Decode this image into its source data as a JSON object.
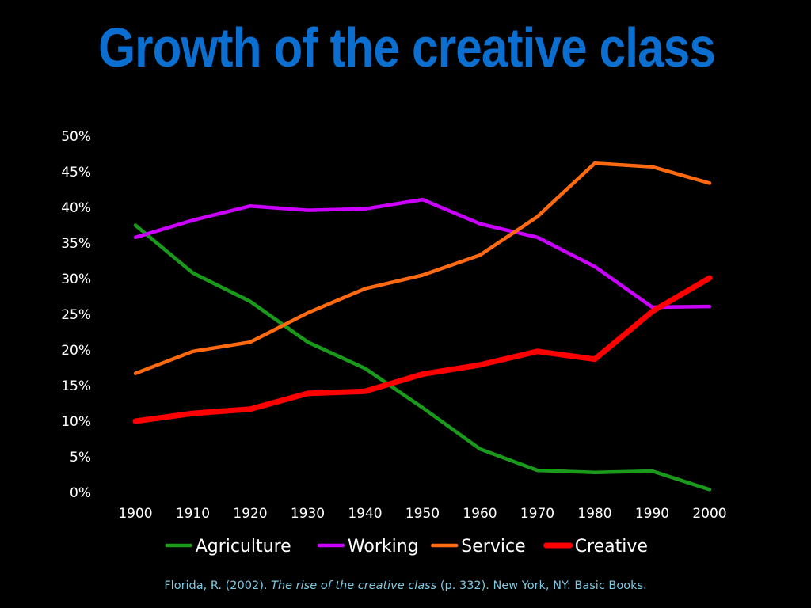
{
  "slide": {
    "title": "Growth of the creative class",
    "title_color": "#0a6fd0",
    "background": "#000000"
  },
  "citation": {
    "author": "Florida, R. (2002). ",
    "work": "The rise of the creative class",
    "rest": " (p. 332). New York, NY: Basic Books.",
    "color": "#7ec8e3"
  },
  "chart_data": {
    "type": "line",
    "x": [
      "1900",
      "1910",
      "1920",
      "1930",
      "1940",
      "1950",
      "1960",
      "1970",
      "1980",
      "1990",
      "2000"
    ],
    "ylim": [
      0,
      50
    ],
    "y_ticks": [
      "0%",
      "5%",
      "10%",
      "15%",
      "20%",
      "25%",
      "30%",
      "35%",
      "40%",
      "45%",
      "50%"
    ],
    "y_tick_values": [
      0,
      5,
      10,
      15,
      20,
      25,
      30,
      35,
      40,
      45,
      50
    ],
    "grid": false,
    "legend_position": "bottom",
    "series": [
      {
        "name": "Agriculture",
        "color": "#1a9a1a",
        "values": [
          37.5,
          30.8,
          26.8,
          21.1,
          17.4,
          11.9,
          6.1,
          3.1,
          2.8,
          3.0,
          0.4
        ]
      },
      {
        "name": "Working",
        "color": "#cc00ff",
        "values": [
          35.8,
          38.2,
          40.2,
          39.6,
          39.8,
          41.1,
          37.7,
          35.8,
          31.7,
          26.0,
          26.1
        ]
      },
      {
        "name": "Service",
        "color": "#ff6a10",
        "values": [
          16.7,
          19.8,
          21.1,
          25.2,
          28.6,
          30.5,
          33.3,
          38.7,
          46.2,
          45.7,
          43.4
        ]
      },
      {
        "name": "Creative",
        "color": "#ff0000",
        "values": [
          10.0,
          11.1,
          11.7,
          13.9,
          14.2,
          16.6,
          17.9,
          19.8,
          18.7,
          25.4,
          30.1
        ]
      }
    ]
  }
}
